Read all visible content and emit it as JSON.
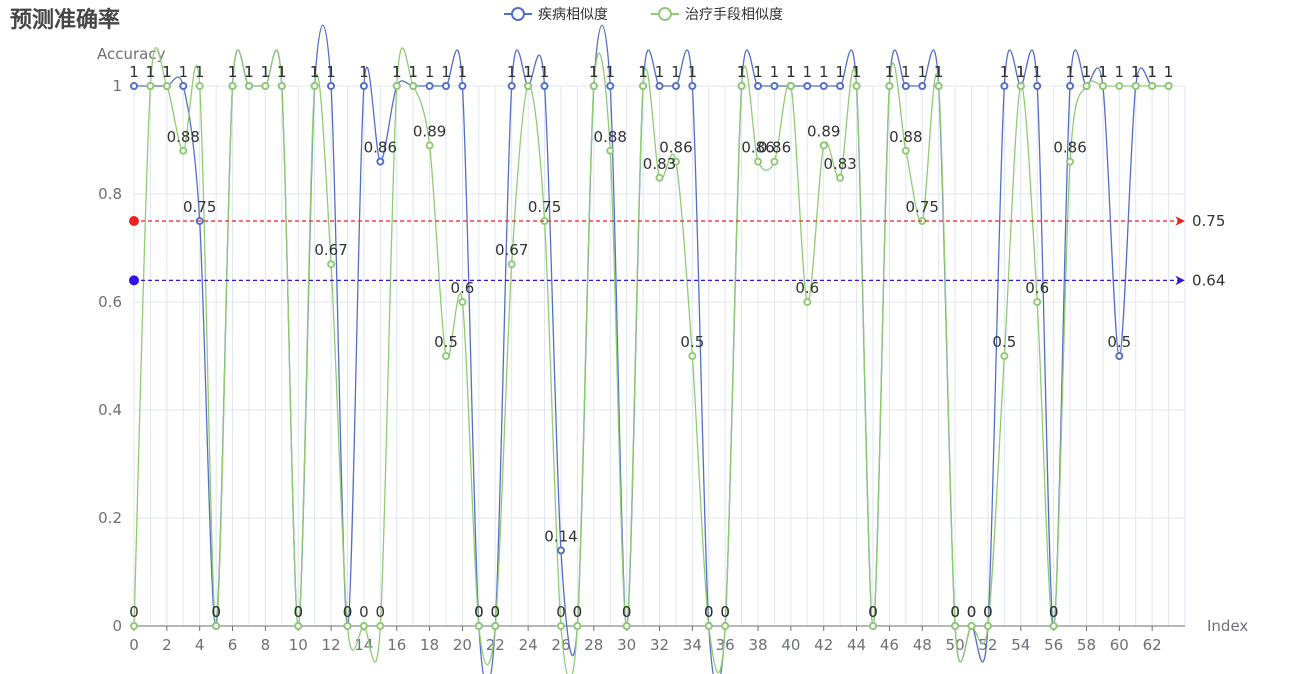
{
  "title": "预测准确率",
  "chart_data": {
    "type": "line",
    "xlabel": "Index",
    "ylabel": "Accuracy",
    "xlim": [
      0,
      64
    ],
    "ylim": [
      0,
      1
    ],
    "x_ticks": [
      0,
      2,
      4,
      6,
      8,
      10,
      12,
      14,
      16,
      18,
      20,
      22,
      24,
      26,
      28,
      30,
      32,
      34,
      36,
      38,
      40,
      42,
      44,
      46,
      48,
      50,
      52,
      54,
      56,
      58,
      60,
      62
    ],
    "y_ticks": [
      0,
      0.2,
      0.4,
      0.6,
      0.8,
      1
    ],
    "grid": true,
    "legend": "top-center",
    "series": [
      {
        "name": "疾病相似度",
        "color": "#5470c6",
        "values": [
          1,
          1,
          1,
          1,
          0.75,
          0,
          1,
          1,
          1,
          1,
          0,
          1,
          1,
          0,
          1,
          0.86,
          1,
          1,
          1,
          1,
          1,
          0,
          0,
          1,
          1,
          1,
          0.14,
          0,
          1,
          1,
          0,
          1,
          1,
          1,
          1,
          0,
          0,
          1,
          1,
          1,
          1,
          1,
          1,
          1,
          1,
          0,
          1,
          1,
          1,
          1,
          0,
          0,
          0,
          1,
          1,
          1,
          0,
          1,
          1,
          1,
          0.5,
          1,
          1,
          1
        ]
      },
      {
        "name": "治疗手段相似度",
        "color": "#91cc75",
        "values": [
          0,
          1,
          1,
          0.88,
          1,
          0,
          1,
          1,
          1,
          1,
          0,
          1,
          0.67,
          0,
          0,
          0,
          1,
          1,
          0.89,
          0.5,
          0.6,
          0,
          0,
          0.67,
          1,
          0.75,
          0,
          0,
          1,
          0.88,
          0,
          1,
          0.83,
          0.86,
          0.5,
          0,
          0,
          1,
          0.86,
          0.86,
          1,
          0.6,
          0.89,
          0.83,
          1,
          0,
          1,
          0.88,
          0.75,
          1,
          0,
          0,
          0,
          0.5,
          1,
          0.6,
          0,
          0.86,
          1,
          1,
          1,
          1,
          1,
          1
        ]
      }
    ],
    "mark_lines": [
      {
        "value": 0.75,
        "label": "0.75",
        "color": "#ee2222"
      },
      {
        "value": 0.64,
        "label": "0.64",
        "color": "#3311ee"
      }
    ]
  }
}
